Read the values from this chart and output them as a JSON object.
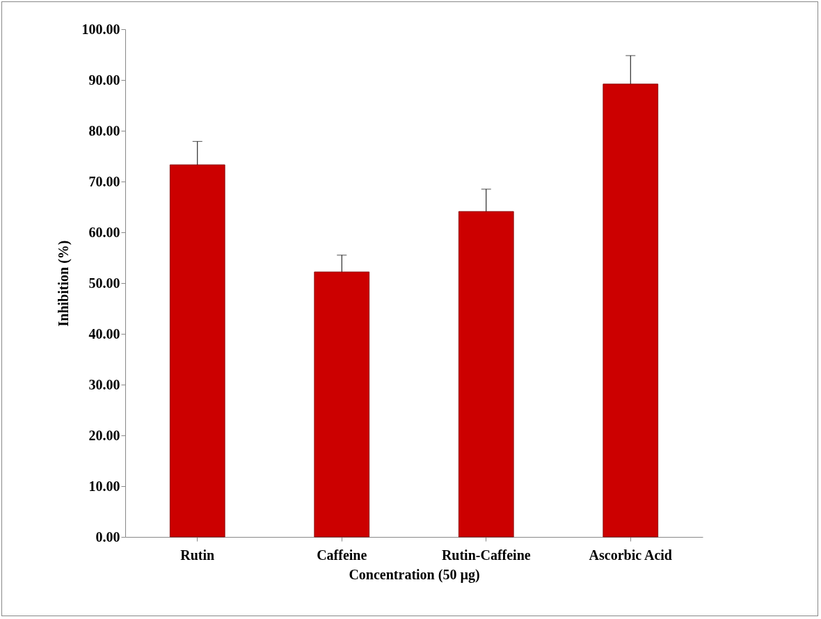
{
  "chart_data": {
    "type": "bar",
    "xlabel": "Concentration (50 µg)",
    "ylabel": "Inhibition (%)",
    "categories": [
      "Rutin",
      "Caffeine",
      "Rutin-Caffeine",
      "Ascorbic Acid"
    ],
    "values": [
      73.3,
      52.2,
      64.1,
      89.2
    ],
    "errors": [
      4.6,
      3.3,
      4.4,
      5.6
    ],
    "color": "#cc0000",
    "ylim": [
      0,
      100
    ],
    "yticks": [
      {
        "value": 0,
        "label": "0.00"
      },
      {
        "value": 10,
        "label": "10.00"
      },
      {
        "value": 20,
        "label": "20.00"
      },
      {
        "value": 30,
        "label": "30.00"
      },
      {
        "value": 40,
        "label": "40.00"
      },
      {
        "value": 50,
        "label": "50.00"
      },
      {
        "value": 60,
        "label": "60.00"
      },
      {
        "value": 70,
        "label": "70.00"
      },
      {
        "value": 80,
        "label": "80.00"
      },
      {
        "value": 90,
        "label": "90.00"
      },
      {
        "value": 100,
        "label": "100.00"
      }
    ],
    "grid": false
  }
}
